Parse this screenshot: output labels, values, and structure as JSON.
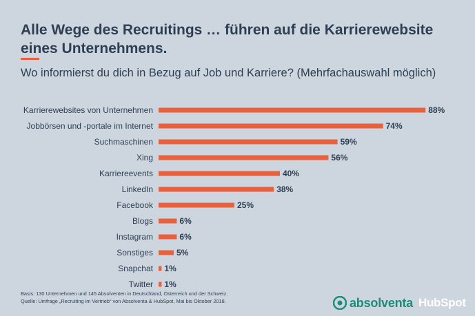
{
  "header": {
    "title": "Alle Wege des Recruitings … führen auf die Karrierewebsite eines Unternehmens.",
    "subtitle": "Wo informierst du dich in Bezug auf Job und Karriere? (Mehrfachauswahl möglich)"
  },
  "colors": {
    "bar": "#e8603c",
    "text": "#2e3f53",
    "background": "#cdd6df",
    "absolventa": "#1f8a7a"
  },
  "chart_data": {
    "type": "bar",
    "orientation": "horizontal",
    "categories": [
      "Karrierewebsites von Unternehmen",
      "Jobbörsen und -portale im Internet",
      "Suchmaschinen",
      "Xing",
      "Karriereevents",
      "LinkedIn",
      "Facebook",
      "Blogs",
      "Instagram",
      "Sonstiges",
      "Snapchat",
      "Twitter"
    ],
    "values": [
      88,
      74,
      59,
      56,
      40,
      38,
      25,
      6,
      6,
      5,
      1,
      1
    ],
    "value_labels": [
      "88%",
      "74%",
      "59%",
      "56%",
      "40%",
      "38%",
      "25%",
      "6%",
      "6%",
      "5%",
      "1%",
      "1%"
    ],
    "unit": "%",
    "xlim": [
      0,
      100
    ],
    "grid": false,
    "legend": "none"
  },
  "footnote": {
    "basis": "Basis: 130 Unternehmen und 145 Absolventen in Deutschland, Österreich und der Schweiz.",
    "source": "Quelle: Umfrage „Recruiting im Vertrieb“ von Absolventa & HubSpot, Mai bis Oktober 2018."
  },
  "logos": {
    "absolventa": "absolventa",
    "hubspot": "HubSpot"
  }
}
